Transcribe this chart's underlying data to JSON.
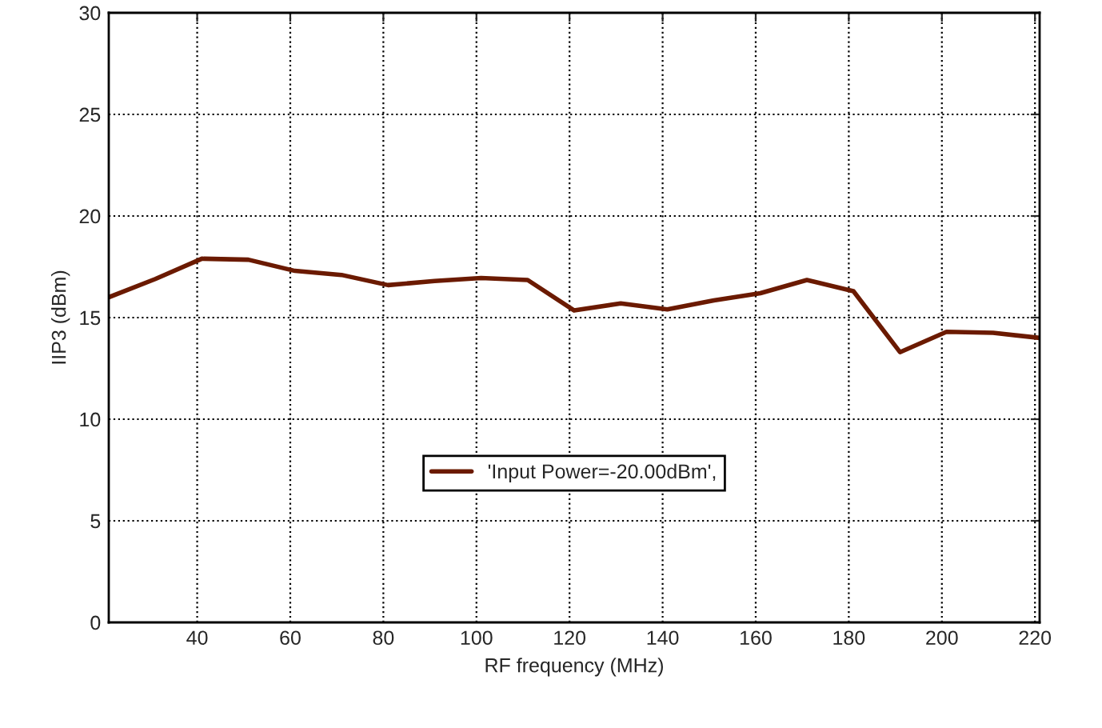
{
  "chart_data": {
    "type": "line",
    "xlabel": "RF frequency (MHz)",
    "ylabel": "IIP3 (dBm)",
    "x": [
      21,
      31,
      41,
      51,
      61,
      71,
      81,
      91,
      101,
      111,
      121,
      131,
      141,
      151,
      161,
      171,
      181,
      191,
      201,
      211,
      221
    ],
    "series": [
      {
        "name": "'Input Power=-20.00dBm',",
        "color": "#6b1a00",
        "values": [
          16.0,
          16.9,
          17.9,
          17.85,
          17.3,
          17.1,
          16.6,
          16.8,
          16.95,
          16.85,
          15.35,
          15.7,
          15.4,
          15.85,
          16.2,
          16.85,
          16.3,
          13.3,
          14.3,
          14.25,
          14.0
        ]
      }
    ],
    "xlim": [
      21,
      221
    ],
    "xticks": [
      40,
      60,
      80,
      100,
      120,
      140,
      160,
      180,
      200,
      220
    ],
    "ylim": [
      0,
      30
    ],
    "yticks": [
      0,
      5,
      10,
      15,
      20,
      25,
      30
    ],
    "grid": true,
    "legend": "bottom",
    "line_style": "solid",
    "marker": "none"
  }
}
